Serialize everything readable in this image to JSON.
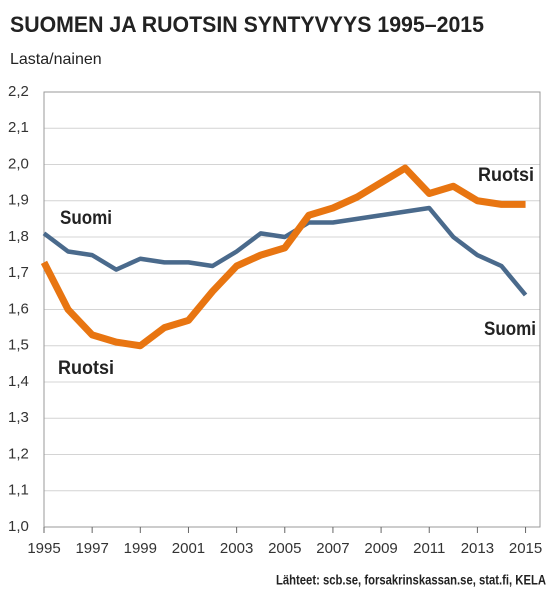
{
  "chart_data": {
    "type": "line",
    "title": "SUOMEN JA RUOTSIN SYNTYVYYS 1995–2015",
    "subtitle": "Lasta/nainen",
    "source": "Lähteet: scb.se, forsakrinskassan.se, stat.fi, KELA",
    "x": [
      1995,
      1996,
      1997,
      1998,
      1999,
      2000,
      2001,
      2002,
      2003,
      2004,
      2005,
      2006,
      2007,
      2008,
      2009,
      2010,
      2011,
      2012,
      2013,
      2014,
      2015
    ],
    "series": [
      {
        "name": "Suomi",
        "color": "#4a6a8c",
        "values": [
          1.81,
          1.76,
          1.75,
          1.71,
          1.74,
          1.73,
          1.73,
          1.72,
          1.76,
          1.81,
          1.8,
          1.84,
          1.84,
          1.85,
          1.86,
          1.87,
          1.88,
          1.8,
          1.75,
          1.72,
          1.64
        ]
      },
      {
        "name": "Ruotsi",
        "color": "#e87511",
        "values": [
          1.73,
          1.6,
          1.53,
          1.51,
          1.5,
          1.55,
          1.57,
          1.65,
          1.72,
          1.75,
          1.77,
          1.86,
          1.88,
          1.91,
          1.95,
          1.99,
          1.92,
          1.94,
          1.9,
          1.89,
          1.89
        ]
      }
    ],
    "xlim": [
      1995,
      2015.6
    ],
    "xticks": [
      1995,
      1997,
      1999,
      2001,
      2003,
      2005,
      2007,
      2009,
      2011,
      2013,
      2015
    ],
    "ylim": [
      1.0,
      2.2
    ],
    "yticks": [
      {
        "value": 1.0,
        "label": "1,0"
      },
      {
        "value": 1.1,
        "label": "1,1"
      },
      {
        "value": 1.2,
        "label": "1,2"
      },
      {
        "value": 1.3,
        "label": "1,3"
      },
      {
        "value": 1.4,
        "label": "1,4"
      },
      {
        "value": 1.5,
        "label": "1,5"
      },
      {
        "value": 1.6,
        "label": "1,6"
      },
      {
        "value": 1.7,
        "label": "1,7"
      },
      {
        "value": 1.8,
        "label": "1,8"
      },
      {
        "value": 1.9,
        "label": "1,9"
      },
      {
        "value": 2.0,
        "label": "2,0"
      },
      {
        "value": 2.1,
        "label": "2,1"
      },
      {
        "value": 2.2,
        "label": "2,2"
      }
    ],
    "grid": true
  }
}
